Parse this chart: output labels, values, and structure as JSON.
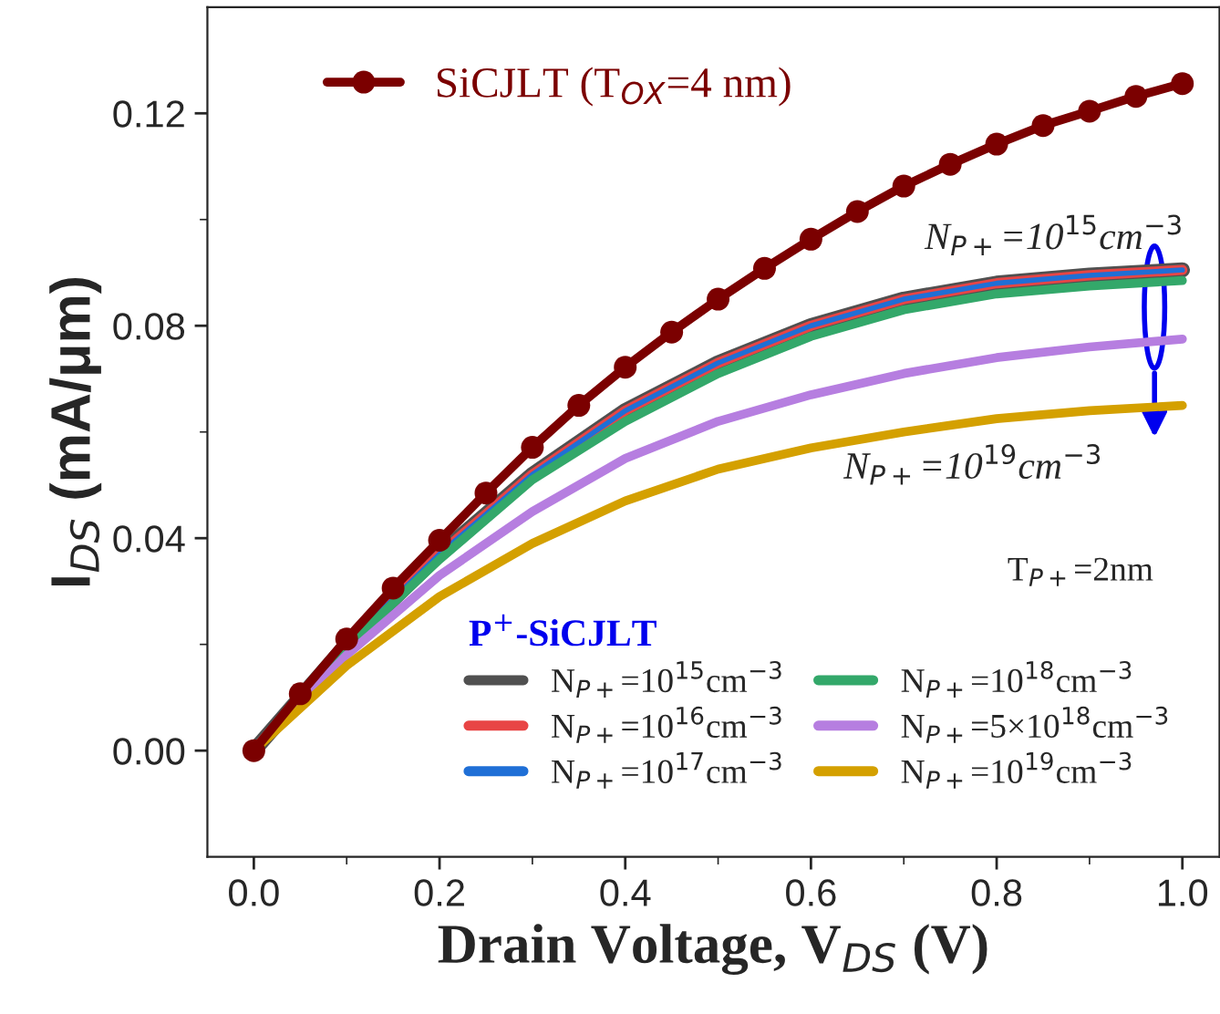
{
  "chart_data": {
    "type": "line",
    "xlabel": "Drain Voltage, V$_{DS}$ (V)",
    "ylabel": "I$_{DS}$ (mA/μm)",
    "legend_title": "P$^{+}$-SiCJLT",
    "annotations": [
      "N$_{P+}$=10$^{15}$cm$^{−3}$",
      "N$_{P+}$=10$^{19}$cm$^{−3}$",
      "T$_{P+}$=2nm"
    ],
    "xlim": [
      -0.05,
      1.04
    ],
    "ylim": [
      -0.02,
      0.14
    ],
    "xticks": [
      {
        "value": 0,
        "label": "0.0"
      },
      {
        "value": 0.2,
        "label": "0.2"
      },
      {
        "value": 0.4,
        "label": "0.4"
      },
      {
        "value": 0.6,
        "label": "0.6"
      },
      {
        "value": 0.8,
        "label": "0.8"
      },
      {
        "value": 1,
        "label": "1.0"
      }
    ],
    "yticks": [
      {
        "value": 0,
        "label": "0.00"
      },
      {
        "value": 0.04,
        "label": "0.04"
      },
      {
        "value": 0.08,
        "label": "0.08"
      },
      {
        "value": 0.12,
        "label": "0.12"
      }
    ],
    "legend": "top right",
    "grid": false,
    "series": [
      {
        "name": "SiCJLT (T$_{OX}$=4 nm)",
        "color": "#7b0000",
        "marker": "circle",
        "x": [
          0,
          0.05,
          0.1,
          0.15,
          0.2,
          0.25,
          0.3,
          0.35,
          0.4,
          0.45,
          0.5,
          0.55,
          0.6,
          0.65,
          0.7,
          0.75,
          0.8,
          0.85,
          0.9,
          0.95,
          1.0
        ],
        "values": [
          0,
          0.0107,
          0.021,
          0.0306,
          0.0396,
          0.0485,
          0.0571,
          0.065,
          0.0722,
          0.0788,
          0.085,
          0.0908,
          0.0963,
          0.1015,
          0.1063,
          0.1104,
          0.1142,
          0.1177,
          0.1204,
          0.1232,
          0.1256
        ]
      },
      {
        "name": "N$_{P+}$=10$^{15}$cm$^{−3}$",
        "color": "#505050",
        "x": [
          0,
          0.1,
          0.2,
          0.3,
          0.4,
          0.5,
          0.6,
          0.7,
          0.8,
          0.9,
          1.0
        ],
        "values": [
          0,
          0.02,
          0.037,
          0.052,
          0.064,
          0.073,
          0.08,
          0.085,
          0.088,
          0.0895,
          0.0905
        ]
      },
      {
        "name": "N$_{P+}$=10$^{16}$cm$^{−3}$",
        "color": "#e84545",
        "x": [
          0,
          0.1,
          0.2,
          0.3,
          0.4,
          0.5,
          0.6,
          0.7,
          0.8,
          0.9,
          1.0
        ],
        "values": [
          0,
          0.02,
          0.037,
          0.052,
          0.064,
          0.073,
          0.08,
          0.085,
          0.088,
          0.0895,
          0.0905
        ]
      },
      {
        "name": "N$_{P+}$=10$^{17}$cm$^{−3}$",
        "color": "#1f6fd6",
        "x": [
          0,
          0.1,
          0.2,
          0.3,
          0.4,
          0.5,
          0.6,
          0.7,
          0.8,
          0.9,
          1.0
        ],
        "values": [
          0,
          0.02,
          0.037,
          0.052,
          0.064,
          0.073,
          0.08,
          0.085,
          0.088,
          0.0895,
          0.0905
        ]
      },
      {
        "name": "N$_{P+}$=10$^{18}$cm$^{−3}$",
        "color": "#33a86a",
        "x": [
          0,
          0.1,
          0.2,
          0.3,
          0.4,
          0.5,
          0.6,
          0.7,
          0.8,
          0.9,
          1.0
        ],
        "values": [
          0,
          0.0195,
          0.036,
          0.051,
          0.062,
          0.071,
          0.078,
          0.083,
          0.086,
          0.0875,
          0.0885
        ]
      },
      {
        "name": "N$_{P+}$=5×10$^{18}$cm$^{−3}$",
        "color": "#b67ee0",
        "x": [
          0,
          0.1,
          0.2,
          0.3,
          0.4,
          0.5,
          0.6,
          0.7,
          0.8,
          0.9,
          1.0
        ],
        "values": [
          0,
          0.018,
          0.033,
          0.045,
          0.055,
          0.062,
          0.067,
          0.071,
          0.074,
          0.076,
          0.0775
        ]
      },
      {
        "name": "N$_{P+}$=10$^{19}$cm$^{−3}$",
        "color": "#d4a000",
        "x": [
          0,
          0.1,
          0.2,
          0.3,
          0.4,
          0.5,
          0.6,
          0.7,
          0.8,
          0.9,
          1.0
        ],
        "values": [
          0,
          0.016,
          0.029,
          0.039,
          0.047,
          0.053,
          0.057,
          0.06,
          0.0625,
          0.064,
          0.065
        ]
      }
    ]
  }
}
